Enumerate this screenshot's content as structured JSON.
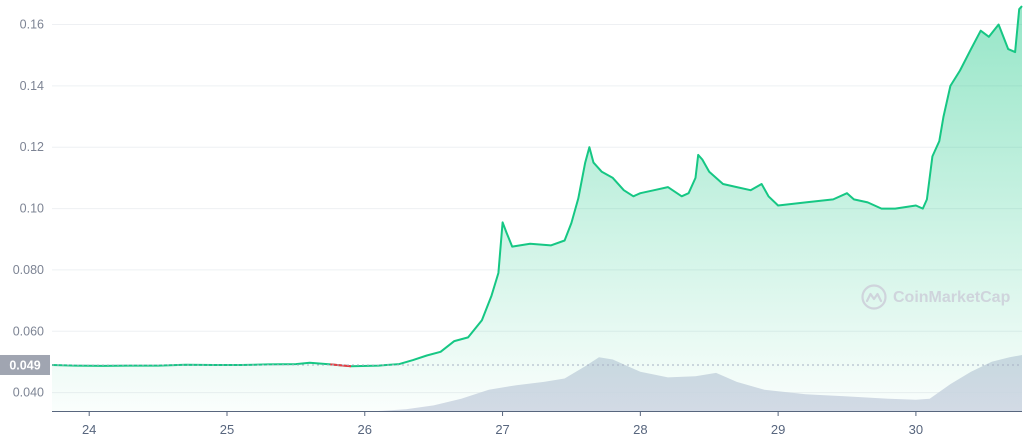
{
  "chart_data": {
    "type": "area",
    "y_ticks": [
      "0.040",
      "0.060",
      "0.080",
      "0.10",
      "0.12",
      "0.14",
      "0.16"
    ],
    "x_ticks": [
      "24",
      "25",
      "26",
      "27",
      "28",
      "29",
      "30"
    ],
    "ylim": [
      0.034,
      0.168
    ],
    "xlim": [
      23.73,
      30.77
    ],
    "current_price": 0.049,
    "current_price_label": "0.049",
    "colors": {
      "up_line": "#16c784",
      "down_line": "#ea3943",
      "area_top": "#16c784",
      "volume": "#cfd3e3",
      "current_label_bg": "#a0a5b1"
    },
    "series": [
      {
        "points": [
          [
            23.73,
            0.049
          ],
          [
            23.9,
            0.0488
          ],
          [
            24.1,
            0.0487
          ],
          [
            24.3,
            0.0488
          ],
          [
            24.5,
            0.0488
          ],
          [
            24.7,
            0.0491
          ],
          [
            24.9,
            0.049
          ],
          [
            25.1,
            0.049
          ],
          [
            25.3,
            0.0492
          ],
          [
            25.5,
            0.0493
          ],
          [
            25.6,
            0.0497
          ],
          [
            25.75,
            0.0492
          ],
          [
            25.9,
            0.0486
          ],
          [
            26.1,
            0.0488
          ],
          [
            26.25,
            0.0493
          ],
          [
            26.35,
            0.0506
          ],
          [
            26.45,
            0.0521
          ],
          [
            26.55,
            0.0533
          ],
          [
            26.65,
            0.0568
          ],
          [
            26.75,
            0.058
          ],
          [
            26.85,
            0.0636
          ],
          [
            26.92,
            0.0716
          ],
          [
            26.97,
            0.079
          ],
          [
            27.0,
            0.0955
          ],
          [
            27.03,
            0.092
          ],
          [
            27.07,
            0.0876
          ],
          [
            27.2,
            0.0885
          ],
          [
            27.35,
            0.088
          ],
          [
            27.45,
            0.0896
          ],
          [
            27.5,
            0.0953
          ],
          [
            27.55,
            0.1033
          ],
          [
            27.6,
            0.115
          ],
          [
            27.63,
            0.12
          ],
          [
            27.66,
            0.115
          ],
          [
            27.72,
            0.112
          ],
          [
            27.8,
            0.11
          ],
          [
            27.88,
            0.106
          ],
          [
            27.95,
            0.104
          ],
          [
            28.0,
            0.105
          ],
          [
            28.1,
            0.106
          ],
          [
            28.2,
            0.107
          ],
          [
            28.3,
            0.104
          ],
          [
            28.35,
            0.105
          ],
          [
            28.4,
            0.11
          ],
          [
            28.42,
            0.1175
          ],
          [
            28.45,
            0.116
          ],
          [
            28.5,
            0.112
          ],
          [
            28.6,
            0.108
          ],
          [
            28.7,
            0.107
          ],
          [
            28.8,
            0.106
          ],
          [
            28.88,
            0.108
          ],
          [
            28.93,
            0.104
          ],
          [
            29.0,
            0.101
          ],
          [
            29.2,
            0.102
          ],
          [
            29.4,
            0.103
          ],
          [
            29.5,
            0.105
          ],
          [
            29.55,
            0.103
          ],
          [
            29.65,
            0.102
          ],
          [
            29.75,
            0.1
          ],
          [
            29.85,
            0.1
          ],
          [
            30.0,
            0.101
          ],
          [
            30.05,
            0.1
          ],
          [
            30.08,
            0.103
          ],
          [
            30.12,
            0.117
          ],
          [
            30.17,
            0.122
          ],
          [
            30.2,
            0.13
          ],
          [
            30.25,
            0.14
          ],
          [
            30.32,
            0.145
          ],
          [
            30.4,
            0.152
          ],
          [
            30.47,
            0.158
          ],
          [
            30.53,
            0.156
          ],
          [
            30.6,
            0.16
          ],
          [
            30.67,
            0.152
          ],
          [
            30.72,
            0.151
          ],
          [
            30.75,
            0.165
          ],
          [
            30.77,
            0.166
          ]
        ],
        "down_segment": [
          25.72,
          26.05
        ]
      }
    ],
    "volume_relative": [
      [
        23.73,
        0.0
      ],
      [
        26.1,
        0.0
      ],
      [
        26.3,
        0.03
      ],
      [
        26.5,
        0.1
      ],
      [
        26.7,
        0.22
      ],
      [
        26.9,
        0.38
      ],
      [
        27.1,
        0.46
      ],
      [
        27.3,
        0.52
      ],
      [
        27.45,
        0.58
      ],
      [
        27.6,
        0.8
      ],
      [
        27.7,
        0.96
      ],
      [
        27.8,
        0.92
      ],
      [
        28.0,
        0.7
      ],
      [
        28.2,
        0.6
      ],
      [
        28.4,
        0.62
      ],
      [
        28.55,
        0.68
      ],
      [
        28.7,
        0.52
      ],
      [
        28.9,
        0.38
      ],
      [
        29.2,
        0.3
      ],
      [
        29.5,
        0.26
      ],
      [
        29.8,
        0.22
      ],
      [
        30.0,
        0.2
      ],
      [
        30.1,
        0.22
      ],
      [
        30.25,
        0.48
      ],
      [
        30.4,
        0.7
      ],
      [
        30.55,
        0.88
      ],
      [
        30.68,
        0.96
      ],
      [
        30.77,
        1.0
      ]
    ],
    "grid": true
  },
  "watermark": {
    "text": "CoinMarketCap",
    "icon": "coinmarketcap-logo-icon"
  }
}
